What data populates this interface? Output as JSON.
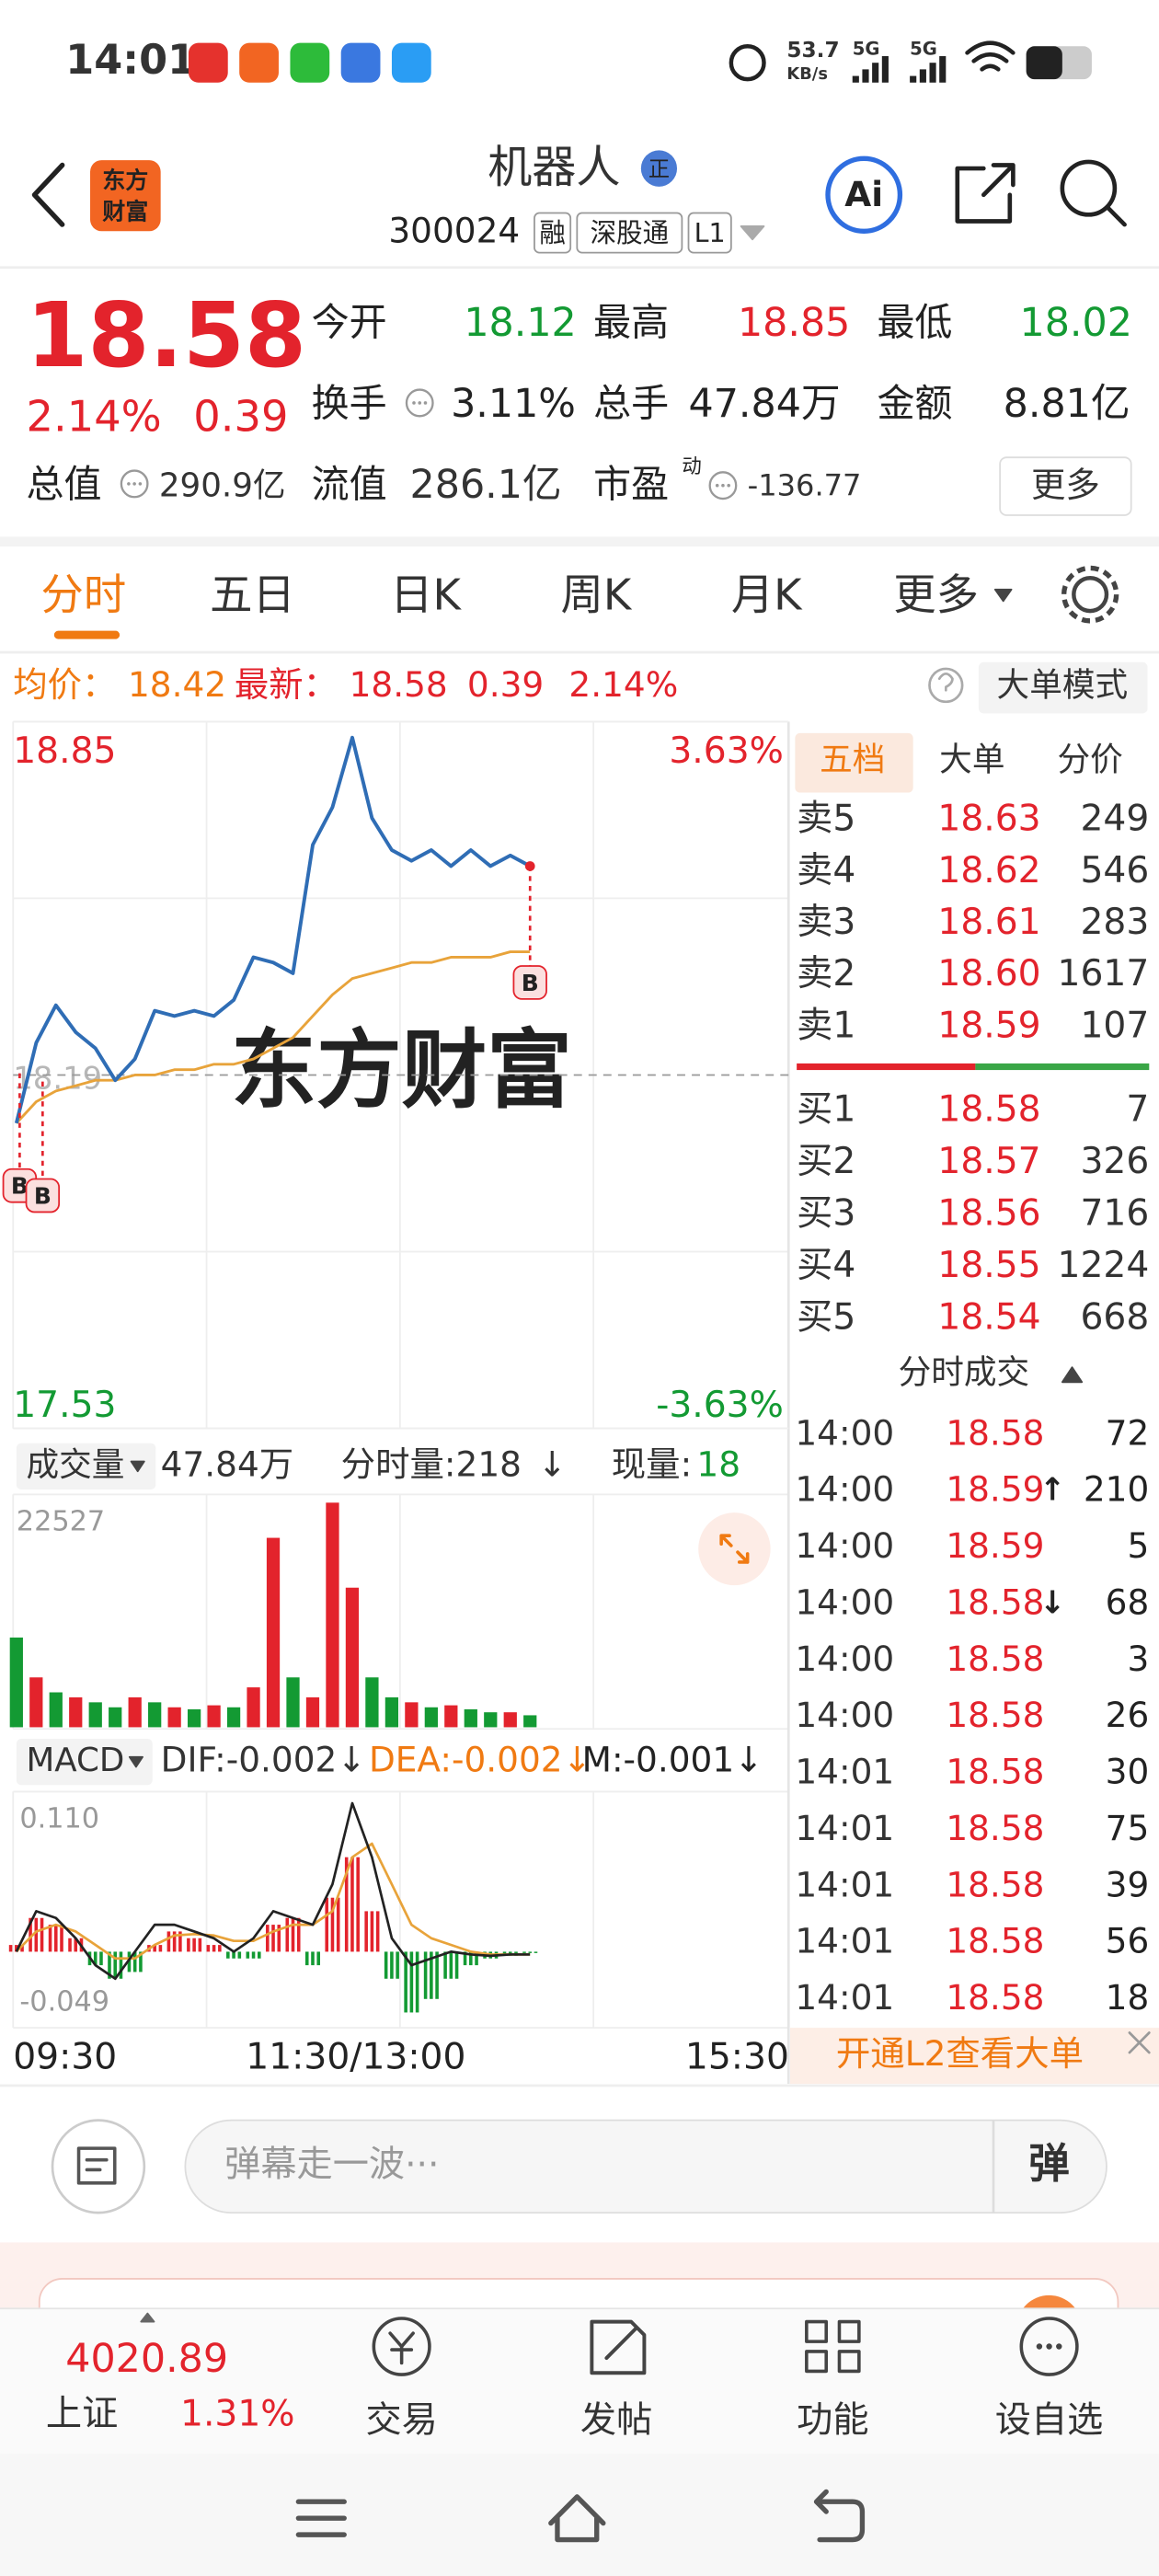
{
  "status_bar": {
    "time": "14:01",
    "speed": "53.7",
    "speed_unit": "KB/s",
    "net1": "5G",
    "net2": "5G"
  },
  "header": {
    "logo": [
      "东方",
      "财富"
    ],
    "title": "机器人",
    "badge": "正",
    "code": "300024",
    "tags": [
      "融",
      "深股通",
      "L1"
    ],
    "ai": "Ai"
  },
  "quote": {
    "price": "18.58",
    "pct": "2.14%",
    "change": "0.39",
    "fields": [
      {
        "label": "今开",
        "value": "18.12"
      },
      {
        "label": "最高",
        "value": "18.85"
      },
      {
        "label": "最低",
        "value": "18.02"
      },
      {
        "label": "换手",
        "value": "3.11%"
      },
      {
        "label": "总手",
        "value": "47.84万"
      },
      {
        "label": "金额",
        "value": "8.81亿"
      }
    ],
    "total_value_label": "总值",
    "total_value": "290.9亿",
    "float_label": "流值",
    "float_value": "286.1亿",
    "pe_label": "市盈",
    "pe_sup": "动",
    "pe_value": "-136.77",
    "more": "更多"
  },
  "tabs": [
    "分时",
    "五日",
    "日K",
    "周K",
    "月K",
    "更多"
  ],
  "info_row": {
    "avg_label": "均价：",
    "avg": "18.42",
    "last_label": "最新：",
    "last": "18.58",
    "change": "0.39",
    "pct": "2.14%",
    "mode": "大单模式"
  },
  "watermark": "东方财富",
  "price_chart": {
    "type": "line",
    "ylim": [
      17.53,
      18.85
    ],
    "yticks": [
      17.53,
      18.19,
      18.85
    ],
    "pct_labels": [
      "3.63%",
      "-3.63%"
    ],
    "series": [
      {
        "color": "#2f6db5",
        "values": [
          18.1,
          18.25,
          18.32,
          18.27,
          18.24,
          18.18,
          18.22,
          18.31,
          18.3,
          18.31,
          18.3,
          18.33,
          18.41,
          18.4,
          18.38,
          18.62,
          18.69,
          18.82,
          18.67,
          18.61,
          18.59,
          18.61,
          18.58,
          18.61,
          18.58,
          18.6,
          18.58
        ]
      },
      {
        "color": "#e8a33a",
        "values": [
          18.1,
          18.14,
          18.16,
          18.17,
          18.18,
          18.18,
          18.19,
          18.19,
          18.2,
          18.2,
          18.21,
          18.21,
          18.22,
          18.24,
          18.26,
          18.3,
          18.34,
          18.37,
          18.38,
          18.39,
          18.4,
          18.4,
          18.41,
          18.41,
          18.41,
          18.42,
          18.42
        ]
      }
    ]
  },
  "volume_header": {
    "label": "成交量",
    "total": "47.84万",
    "per_min": "分时量:218",
    "per_arrow": "↓",
    "now_label": "现量:",
    "now": "18"
  },
  "volume_chart": {
    "type": "bar",
    "ylim": [
      0,
      22527
    ],
    "yticks": [
      22527
    ],
    "values": [
      9000,
      5000,
      3500,
      3000,
      2500,
      2000,
      3000,
      2500,
      2000,
      1800,
      2200,
      2000,
      4000,
      19000,
      5000,
      3000,
      22527,
      14000,
      5000,
      3000,
      2500,
      2000,
      2200,
      1800,
      1500,
      1500,
      1200
    ],
    "colors": [
      "#139a33",
      "#e3232c",
      "#139a33",
      "#e3232c",
      "#139a33",
      "#139a33",
      "#e3232c",
      "#139a33",
      "#e3232c",
      "#139a33",
      "#e3232c",
      "#139a33",
      "#e3232c",
      "#e3232c",
      "#139a33",
      "#e3232c",
      "#e3232c",
      "#e3232c",
      "#139a33",
      "#139a33",
      "#e3232c",
      "#139a33",
      "#e3232c",
      "#139a33",
      "#139a33",
      "#e3232c",
      "#139a33"
    ]
  },
  "macd_header": {
    "label": "MACD",
    "dif": "DIF:-0.002↓",
    "dea": "DEA:-0.002↓",
    "m": "M:-0.001↓"
  },
  "macd_chart": {
    "type": "macd",
    "ylim": [
      -0.049,
      0.11
    ],
    "yticks": [
      {
        "value": 0.11,
        "label": "0.110"
      },
      -0.049
    ],
    "hist": [
      0.005,
      0.025,
      0.02,
      0.01,
      -0.01,
      -0.02,
      -0.015,
      0.005,
      0.015,
      0.01,
      0.005,
      -0.005,
      -0.005,
      0.02,
      0.025,
      -0.01,
      0.04,
      0.07,
      0.03,
      -0.02,
      -0.045,
      -0.035,
      -0.02,
      -0.01,
      -0.005,
      -0.003,
      -0.001
    ],
    "dif": [
      0.0,
      0.03,
      0.025,
      0.01,
      -0.01,
      -0.02,
      0.0,
      0.02,
      0.02,
      0.015,
      0.01,
      0.0,
      0.01,
      0.03,
      0.025,
      0.02,
      0.05,
      0.11,
      0.07,
      0.01,
      -0.01,
      -0.005,
      0.0,
      -0.002,
      -0.003,
      -0.002,
      -0.002
    ],
    "dea": [
      0.0,
      0.015,
      0.02,
      0.015,
      0.005,
      -0.005,
      -0.005,
      0.005,
      0.012,
      0.013,
      0.012,
      0.008,
      0.008,
      0.015,
      0.02,
      0.02,
      0.03,
      0.07,
      0.08,
      0.05,
      0.02,
      0.01,
      0.005,
      0.0,
      -0.002,
      -0.002,
      -0.002
    ],
    "dif_color": "#222",
    "dea_color": "#e8a33a",
    "up_color": "#e3232c",
    "down_color": "#139a33"
  },
  "time_labels": [
    "09:30",
    "11:30/13:00",
    "15:30"
  ],
  "order_book": {
    "tabs": [
      "五档",
      "大单",
      "分价"
    ],
    "asks": [
      {
        "label": "卖5",
        "price": "18.63",
        "qty": "249"
      },
      {
        "label": "卖4",
        "price": "18.62",
        "qty": "546"
      },
      {
        "label": "卖3",
        "price": "18.61",
        "qty": "283"
      },
      {
        "label": "卖2",
        "price": "18.60",
        "qty": "1617"
      },
      {
        "label": "卖1",
        "price": "18.59",
        "qty": "107"
      }
    ],
    "bids": [
      {
        "label": "买1",
        "price": "18.58",
        "qty": "7"
      },
      {
        "label": "买2",
        "price": "18.57",
        "qty": "326"
      },
      {
        "label": "买3",
        "price": "18.56",
        "qty": "716"
      },
      {
        "label": "买4",
        "price": "18.55",
        "qty": "1224"
      },
      {
        "label": "买5",
        "price": "18.54",
        "qty": "668"
      }
    ]
  },
  "trades": {
    "title": "分时成交",
    "rows": [
      {
        "time": "14:00",
        "price": "18.58",
        "qty": "72",
        "color": "#139a33"
      },
      {
        "time": "14:00",
        "price": "18.59",
        "arrow": "↑",
        "qty": "210",
        "color": "#e3232c"
      },
      {
        "time": "14:00",
        "price": "18.59",
        "qty": "5",
        "color": "#e3232c"
      },
      {
        "time": "14:00",
        "price": "18.58",
        "arrow": "↓",
        "qty": "68",
        "color": "#139a33"
      },
      {
        "time": "14:00",
        "price": "18.58",
        "qty": "3",
        "color": "#e3232c"
      },
      {
        "time": "14:00",
        "price": "18.58",
        "qty": "26",
        "color": "#e3232c"
      },
      {
        "time": "14:01",
        "price": "18.58",
        "qty": "30",
        "color": "#e3232c"
      },
      {
        "time": "14:01",
        "price": "18.58",
        "qty": "75",
        "color": "#e3232c"
      },
      {
        "time": "14:01",
        "price": "18.58",
        "qty": "39",
        "color": "#e3232c"
      },
      {
        "time": "14:01",
        "price": "18.58",
        "qty": "56",
        "color": "#e3232c"
      },
      {
        "time": "14:01",
        "price": "18.58",
        "qty": "18",
        "color": "#139a33"
      }
    ]
  },
  "l2_banner": "开通L2查看大单",
  "comment": {
    "placeholder": "弹幕走一波···",
    "button": "弹"
  },
  "bottom_nav": {
    "index_value": "4020.89",
    "index_name": "上证",
    "index_pct": "1.31%",
    "items": [
      "交易",
      "发帖",
      "功能",
      "设自选"
    ]
  }
}
